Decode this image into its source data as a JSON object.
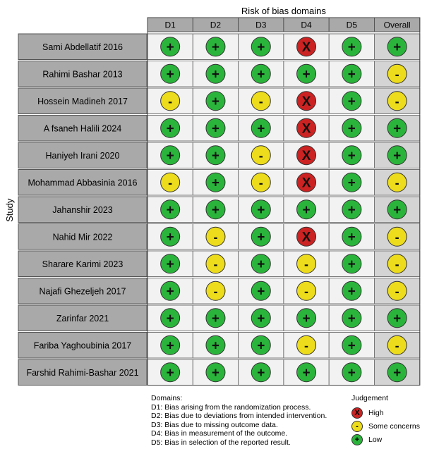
{
  "colors": {
    "high": "#cc2222",
    "some": "#ecdc1c",
    "low": "#2bb43c",
    "header": "#a9a9a9",
    "study": "#a9a9a9",
    "cell": "#f2f2f2",
    "overall": "#d4d4d4"
  },
  "chart_data": {
    "type": "table",
    "title": "Risk of bias domains",
    "ylabel": "Study",
    "columns": [
      "D1",
      "D2",
      "D3",
      "D4",
      "D5",
      "Overall"
    ],
    "rows": [
      {
        "study": "Sami Abdellatif 2016",
        "values": [
          "+",
          "+",
          "+",
          "X",
          "+",
          "+"
        ]
      },
      {
        "study": "Rahimi Bashar 2013",
        "values": [
          "+",
          "+",
          "+",
          "+",
          "+",
          "-"
        ]
      },
      {
        "study": "Hossein Madineh 2017",
        "values": [
          "-",
          "+",
          "-",
          "X",
          "+",
          "-"
        ]
      },
      {
        "study": "A fsaneh Halili 2024",
        "values": [
          "+",
          "+",
          "+",
          "X",
          "+",
          "+"
        ]
      },
      {
        "study": "Haniyeh Irani 2020",
        "values": [
          "+",
          "+",
          "-",
          "X",
          "+",
          "+"
        ]
      },
      {
        "study": "Mohammad Abbasinia 2016",
        "values": [
          "-",
          "+",
          "-",
          "X",
          "+",
          "-"
        ]
      },
      {
        "study": "Jahanshir 2023",
        "values": [
          "+",
          "+",
          "+",
          "+",
          "+",
          "+"
        ]
      },
      {
        "study": "Nahid Mir 2022",
        "values": [
          "+",
          "-",
          "+",
          "X",
          "+",
          "-"
        ]
      },
      {
        "study": "Sharare Karimi 2023",
        "values": [
          "+",
          "-",
          "+",
          "-",
          "+",
          "-"
        ]
      },
      {
        "study": "Najafi Ghezeljeh 2017",
        "values": [
          "+",
          "-",
          "+",
          "-",
          "+",
          "-"
        ]
      },
      {
        "study": "Zarinfar 2021",
        "values": [
          "+",
          "+",
          "+",
          "+",
          "+",
          "+"
        ]
      },
      {
        "study": "Fariba Yaghoubinia 2017",
        "values": [
          "+",
          "+",
          "+",
          "-",
          "+",
          "-"
        ]
      },
      {
        "study": "Farshid Rahimi-Bashar 2021",
        "values": [
          "+",
          "+",
          "+",
          "+",
          "+",
          "+"
        ]
      }
    ]
  },
  "legend": {
    "domains_title": "Domains:",
    "domains": [
      "D1: Bias arising from the randomization process.",
      "D2: Bias due to deviations from intended intervention.",
      "D3: Bias due to missing outcome data.",
      "D4: Bias in measurement of the outcome.",
      "D5: Bias in selection of the reported result."
    ],
    "judgement_title": "Judgement",
    "judgements": [
      {
        "symbol": "X",
        "label": "High",
        "level": "high"
      },
      {
        "symbol": "-",
        "label": "Some concerns",
        "level": "some"
      },
      {
        "symbol": "+",
        "label": "Low",
        "level": "low"
      }
    ]
  }
}
